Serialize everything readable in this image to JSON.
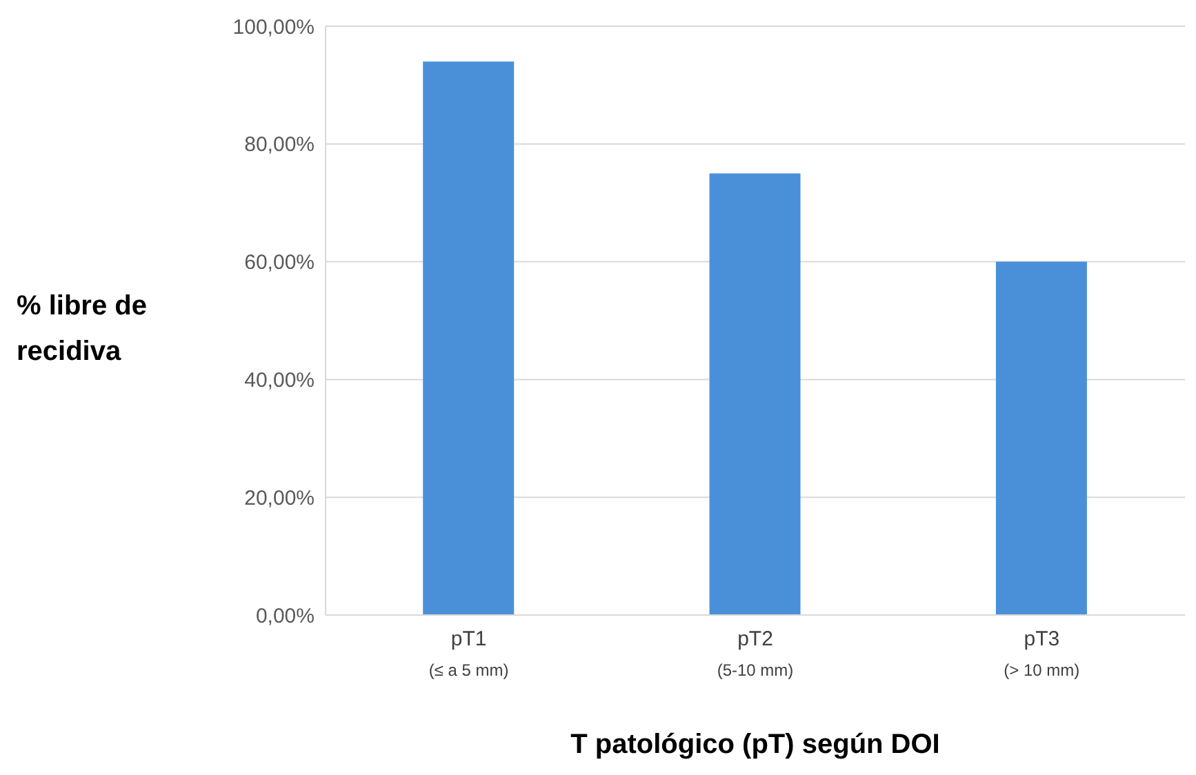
{
  "chart_data": {
    "type": "bar",
    "xlabel": "T patológico (pT) según DOI",
    "ylabel": "% libre de\nrecidiva",
    "categories": [
      "pT1\n(≤ a 5 mm)",
      "pT2\n(5-10 mm)",
      "pT3\n(> 10 mm)"
    ],
    "values": [
      94,
      75,
      60
    ],
    "color": "#4a90d9",
    "ylim": [
      0,
      100
    ],
    "yticks": [
      {
        "value": 0,
        "label": "0,00%"
      },
      {
        "value": 20,
        "label": "20,00%"
      },
      {
        "value": 40,
        "label": "40,00%"
      },
      {
        "value": 60,
        "label": "60,00%"
      },
      {
        "value": 80,
        "label": "80,00%"
      },
      {
        "value": 100,
        "label": "100,00%"
      }
    ],
    "grid": "y",
    "legend": false
  }
}
